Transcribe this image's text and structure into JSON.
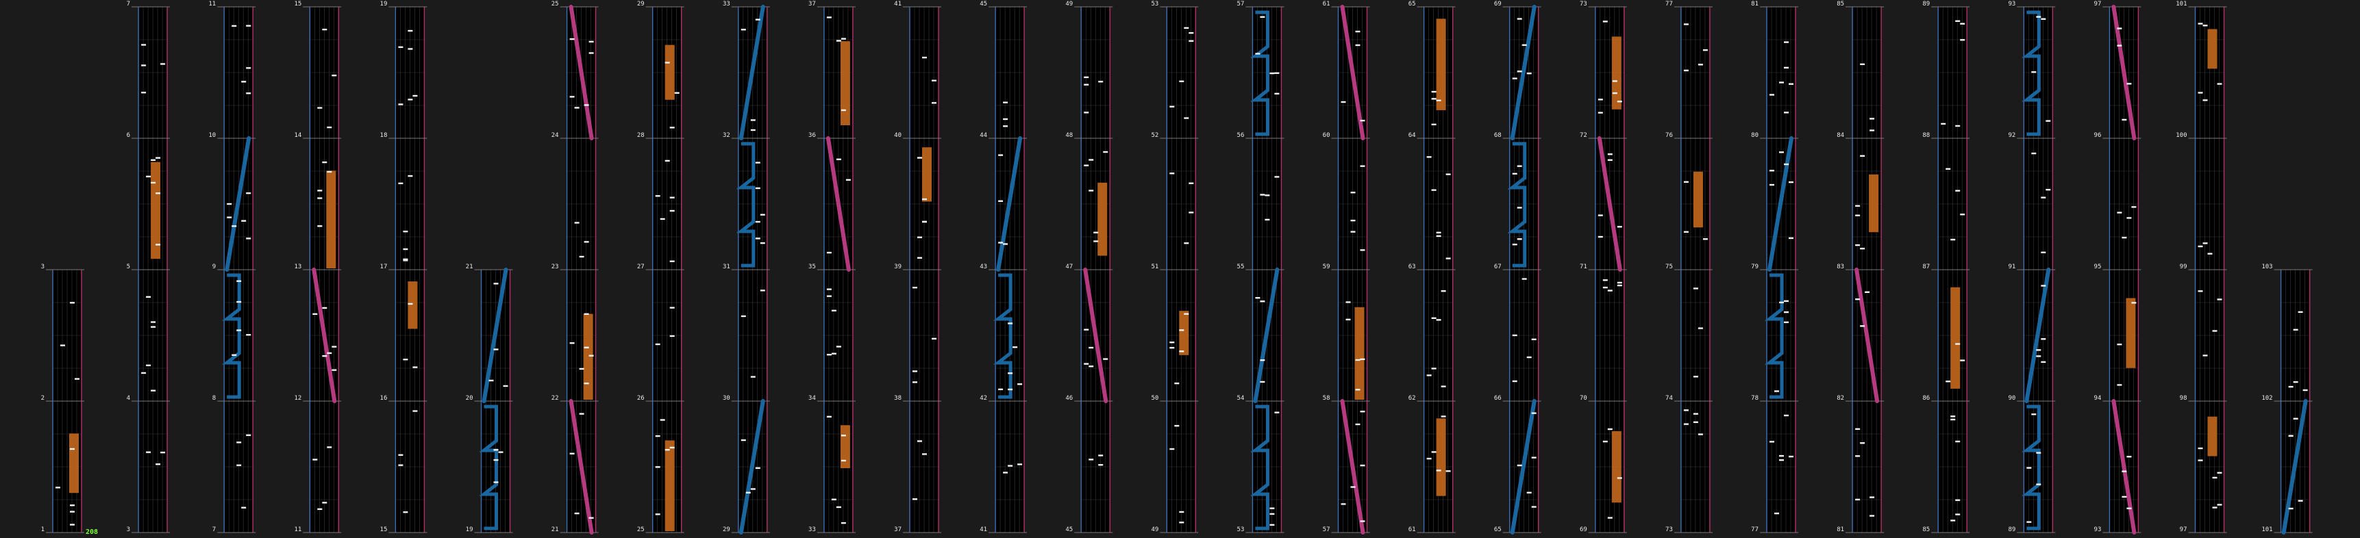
{
  "page": {
    "combo_counter": "208",
    "colors": {
      "background": "#1b1b1b",
      "lane_bg": "#000000",
      "grid_line": "#3a3a3a",
      "left_border": "#3c6fb4",
      "right_border": "#b4306c",
      "measure_line": "#7a7a7a",
      "note": "#f2f2f2",
      "hold": "#c0661c",
      "blue_slide": "#1a67a0",
      "pink_slide": "#b63a80",
      "counter": "#7cff3a"
    }
  },
  "chart_data": {
    "type": "rhythm-chart",
    "columns": [
      {
        "measures": [
          1,
          2,
          3
        ]
      },
      {
        "measures": [
          3,
          4,
          5,
          6,
          7
        ]
      },
      {
        "measures": [
          7,
          8,
          9,
          10,
          11
        ]
      },
      {
        "measures": [
          11,
          12,
          13,
          14,
          15
        ]
      },
      {
        "measures": [
          15,
          16,
          17,
          18,
          19
        ]
      },
      {
        "measures": [
          19,
          20,
          21
        ]
      },
      {
        "measures": [
          21,
          22,
          23,
          24,
          25
        ]
      },
      {
        "measures": [
          25,
          26,
          27,
          28,
          29
        ]
      },
      {
        "measures": [
          29,
          30,
          31,
          32,
          33
        ]
      },
      {
        "measures": [
          33,
          34,
          35,
          36,
          37
        ]
      },
      {
        "measures": [
          37,
          38,
          39,
          40,
          41
        ]
      },
      {
        "measures": [
          41,
          42,
          43,
          44,
          45
        ]
      },
      {
        "measures": [
          45,
          46,
          47,
          48,
          49
        ]
      },
      {
        "measures": [
          49,
          50,
          51,
          52,
          53
        ]
      },
      {
        "measures": [
          53,
          54,
          55,
          56,
          57
        ]
      },
      {
        "measures": [
          57,
          58,
          59,
          60,
          61
        ]
      },
      {
        "measures": [
          61,
          62,
          63,
          64,
          65
        ]
      },
      {
        "measures": [
          65,
          66,
          67,
          68,
          69
        ]
      },
      {
        "measures": [
          69,
          70,
          71,
          72,
          73
        ]
      },
      {
        "measures": [
          73,
          74,
          75,
          76,
          77
        ]
      },
      {
        "measures": [
          77,
          78,
          79,
          80,
          81
        ]
      },
      {
        "measures": [
          81,
          82,
          83,
          84,
          85
        ]
      },
      {
        "measures": [
          85,
          86,
          87,
          88,
          89
        ]
      },
      {
        "measures": [
          89,
          90,
          91,
          92,
          93
        ]
      },
      {
        "measures": [
          93,
          94,
          95,
          96,
          97
        ]
      },
      {
        "measures": [
          97,
          98,
          99,
          100,
          101
        ]
      },
      {
        "measures": [
          101,
          102,
          103
        ]
      }
    ]
  }
}
